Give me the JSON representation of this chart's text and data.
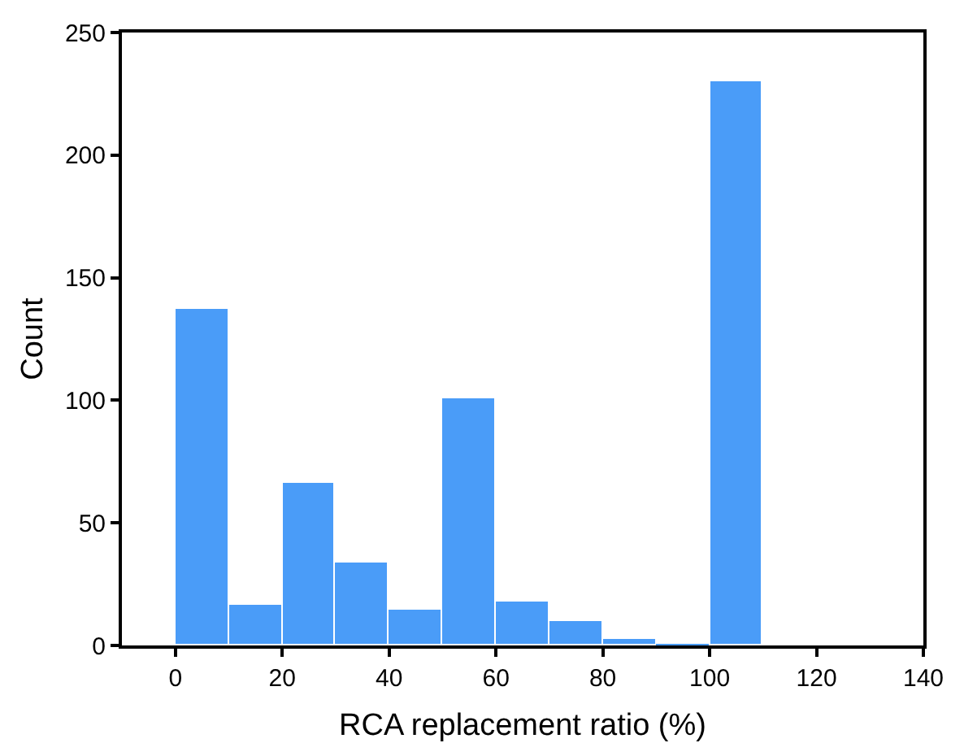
{
  "chart_data": {
    "type": "histogram",
    "xlabel": "RCA replacement ratio (%)",
    "ylabel": "Count",
    "bins": [
      0,
      10,
      20,
      30,
      40,
      50,
      60,
      70,
      80,
      90,
      100,
      110
    ],
    "values": [
      137,
      16.5,
      66.5,
      34,
      14.5,
      101,
      18,
      10,
      2.5,
      0,
      230
    ],
    "color": "#4a9cf8",
    "xlim": [
      -10,
      140
    ],
    "xticks": [
      0,
      20,
      40,
      60,
      80,
      100,
      120,
      140
    ],
    "ylim": [
      0,
      250
    ],
    "yticks": [
      0,
      50,
      100,
      150,
      200,
      250
    ],
    "grid": false
  }
}
